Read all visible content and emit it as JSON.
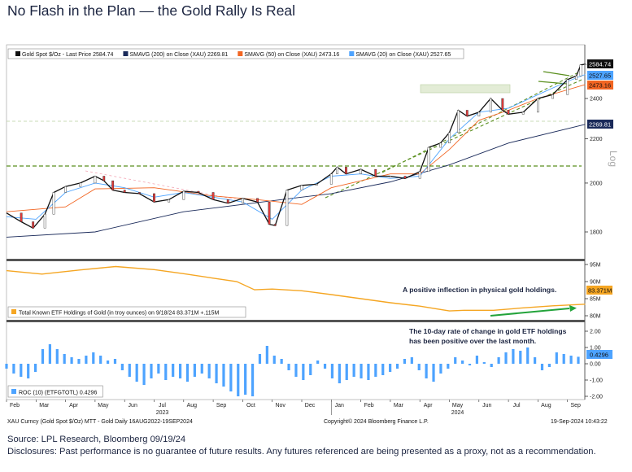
{
  "title": "No Flash in the Plan — the Gold Rally Is Real",
  "source": "Source: LPL Research, Bloomberg 09/19/24",
  "disclosure": "Disclosures: Past performance is no guarantee of future results. Any futures referenced are being presented as a proxy, not as a recommendation.",
  "footer": {
    "left": "XAU Curncy (Gold Spot  $/Oz) MTT - Gold  Daily 16AUG2022-19SEP2024",
    "center": "Copyright© 2024 Bloomberg Finance L.P.",
    "right": "19-Sep-2024 10:43:22"
  },
  "colors": {
    "price": "#111111",
    "sma200": "#1a2a5a",
    "sma50": "#f26522",
    "sma20": "#4da3ff",
    "etf": "#f5a623",
    "roc": "#4da3ff",
    "annotation": "#5a8f1e"
  },
  "chart_data": [
    {
      "type": "line",
      "title": "Gold Spot $/Oz",
      "scale": "Log",
      "ylim": [
        1740,
        2640
      ],
      "yticks": [
        "1800",
        "2000",
        "2200",
        "2400"
      ],
      "legend": {
        "placement": "top-left",
        "entries": [
          {
            "label": "Gold Spot $/Oz - Last Price 2584.74",
            "key": "price"
          },
          {
            "label": "SMAVG (200)  on Close (XAU) 2269.81",
            "key": "sma200"
          },
          {
            "label": "SMAVG (50)  on Close (XAU) 2473.16",
            "key": "sma50"
          },
          {
            "label": "SMAVG (20)  on Close (XAU) 2527.65",
            "key": "sma20"
          }
        ]
      },
      "last_labels": {
        "price": "2584.74",
        "sma20": "2527.65",
        "sma50": "2473.16",
        "sma200": "2269.81"
      },
      "x_unit": "months since Feb 2023",
      "series": [
        {
          "name": "price",
          "points": [
            [
              0,
              1875
            ],
            [
              0.5,
              1840
            ],
            [
              0.9,
              1815
            ],
            [
              1.3,
              1870
            ],
            [
              1.6,
              1960
            ],
            [
              2.0,
              1985
            ],
            [
              2.5,
              2000
            ],
            [
              3.0,
              2030
            ],
            [
              3.3,
              2010
            ],
            [
              3.6,
              1970
            ],
            [
              4.0,
              1960
            ],
            [
              4.5,
              1955
            ],
            [
              5.0,
              1920
            ],
            [
              5.5,
              1930
            ],
            [
              6.0,
              1965
            ],
            [
              6.5,
              1960
            ],
            [
              7.0,
              1930
            ],
            [
              7.5,
              1915
            ],
            [
              8.0,
              1935
            ],
            [
              8.5,
              1920
            ],
            [
              8.9,
              1830
            ],
            [
              9.1,
              1825
            ],
            [
              9.5,
              1970
            ],
            [
              10.0,
              1990
            ],
            [
              10.5,
              1995
            ],
            [
              11.0,
              2040
            ],
            [
              11.2,
              2070
            ],
            [
              11.5,
              2040
            ],
            [
              12.0,
              2060
            ],
            [
              12.5,
              2030
            ],
            [
              13.0,
              2030
            ],
            [
              13.5,
              2020
            ],
            [
              14.0,
              2050
            ],
            [
              14.3,
              2160
            ],
            [
              14.7,
              2180
            ],
            [
              15.0,
              2230
            ],
            [
              15.3,
              2340
            ],
            [
              15.6,
              2310
            ],
            [
              16.0,
              2330
            ],
            [
              16.4,
              2400
            ],
            [
              16.8,
              2340
            ],
            [
              17.0,
              2320
            ],
            [
              17.5,
              2330
            ],
            [
              18.0,
              2400
            ],
            [
              18.5,
              2420
            ],
            [
              19.0,
              2500
            ],
            [
              19.3,
              2520
            ],
            [
              19.45,
              2580
            ],
            [
              19.6,
              2584.74
            ]
          ]
        },
        {
          "name": "sma200",
          "points": [
            [
              0,
              1780
            ],
            [
              3,
              1800
            ],
            [
              6,
              1880
            ],
            [
              9,
              1925
            ],
            [
              11,
              1955
            ],
            [
              13,
              2005
            ],
            [
              15,
              2080
            ],
            [
              17,
              2180
            ],
            [
              19.6,
              2269.81
            ]
          ]
        },
        {
          "name": "sma50",
          "points": [
            [
              0,
              1880
            ],
            [
              2,
              1900
            ],
            [
              3,
              1975
            ],
            [
              5,
              1980
            ],
            [
              7,
              1945
            ],
            [
              8.5,
              1930
            ],
            [
              10,
              1910
            ],
            [
              11,
              1980
            ],
            [
              13,
              2040
            ],
            [
              14,
              2040
            ],
            [
              15,
              2150
            ],
            [
              16,
              2290
            ],
            [
              17,
              2340
            ],
            [
              18,
              2400
            ],
            [
              19.6,
              2473.16
            ]
          ]
        },
        {
          "name": "sma20",
          "points": [
            [
              0,
              1860
            ],
            [
              1,
              1850
            ],
            [
              2,
              1960
            ],
            [
              3,
              2000
            ],
            [
              4,
              1980
            ],
            [
              5,
              1940
            ],
            [
              6,
              1960
            ],
            [
              7,
              1940
            ],
            [
              8,
              1920
            ],
            [
              9,
              1850
            ],
            [
              10,
              1970
            ],
            [
              11,
              2030
            ],
            [
              12,
              2040
            ],
            [
              13,
              2020
            ],
            [
              14,
              2030
            ],
            [
              15,
              2200
            ],
            [
              16,
              2330
            ],
            [
              17,
              2350
            ],
            [
              18,
              2420
            ],
            [
              19,
              2490
            ],
            [
              19.6,
              2527.65
            ]
          ]
        }
      ]
    },
    {
      "type": "line",
      "title": "Total Known ETF Holdings of Gold (in troy ounces)",
      "legend": {
        "placement": "bottom-left",
        "label": "Total Known ETF Holdings of Gold (in troy ounces) on 9/18/24 83.371M  +.115M"
      },
      "yticks": [
        "80M",
        "85M",
        "90M",
        "95M"
      ],
      "ylim": [
        79,
        96
      ],
      "last_label": "83.371M",
      "annotation": "A positive inflection in physical gold holdings.",
      "points": [
        [
          0,
          93.2
        ],
        [
          1.2,
          92.2
        ],
        [
          2.5,
          93.4
        ],
        [
          3.7,
          94.4
        ],
        [
          5,
          93.5
        ],
        [
          6,
          92.3
        ],
        [
          7,
          91
        ],
        [
          7.8,
          90
        ],
        [
          8.4,
          87.6
        ],
        [
          9,
          87.8
        ],
        [
          10,
          87.3
        ],
        [
          11,
          86.2
        ],
        [
          12,
          85
        ],
        [
          13,
          83.8
        ],
        [
          14,
          82.8
        ],
        [
          15,
          81.4
        ],
        [
          15.5,
          81.6
        ],
        [
          16.5,
          81.6
        ],
        [
          17.5,
          82.3
        ],
        [
          18.5,
          82.9
        ],
        [
          19.6,
          83.371
        ]
      ]
    },
    {
      "type": "bar",
      "title": "ROC (10) (ETFGTOTL)",
      "legend": {
        "placement": "bottom-left",
        "label": "ROC (10) (ETFGTOTL) 0.4296"
      },
      "yticks": [
        "-2.00",
        "-1.00",
        "0.00",
        "1.00",
        "2.00"
      ],
      "ylim": [
        -2.2,
        2.2
      ],
      "last_label": "0.4296",
      "annotation": [
        "The 10-day rate of change in gold ETF holdings",
        "has been positive over the last month."
      ],
      "values": [
        -0.3,
        -0.6,
        -0.8,
        -0.9,
        -0.5,
        0.9,
        1.2,
        0.9,
        0.6,
        0.4,
        0.3,
        0.5,
        0.7,
        0.5,
        0.2,
        0.3,
        -0.4,
        -0.8,
        -1.1,
        -1.3,
        -0.9,
        -0.6,
        -1.0,
        -0.8,
        -0.9,
        -1.1,
        -0.8,
        -0.6,
        -0.9,
        -1.2,
        -1.4,
        -1.7,
        -2.0,
        -1.9,
        -2.0,
        0.6,
        1.1,
        0.5,
        0.3,
        -0.4,
        -0.8,
        -1.0,
        -0.7,
        0.2,
        -0.3,
        -0.9,
        -1.2,
        -1.0,
        -0.8,
        -0.9,
        -1.0,
        -0.8,
        -0.7,
        -0.5,
        -0.3,
        0.3,
        0.4,
        -0.4,
        -0.9,
        -1.1,
        -0.6,
        -0.3,
        0.4,
        0.2,
        -0.1,
        0.5,
        0.1,
        -0.2,
        0.4,
        0.7,
        0.9,
        0.8,
        1.0,
        0.4,
        -0.4,
        -0.2,
        0.7,
        0.6,
        0.5,
        0.4296
      ]
    }
  ],
  "x_axis": {
    "months": [
      "Feb",
      "Mar",
      "Apr",
      "May",
      "Jun",
      "Jul",
      "Aug",
      "Sep",
      "Oct",
      "Nov",
      "Dec",
      "Jan",
      "Feb",
      "Mar",
      "Apr",
      "May",
      "Jun",
      "Jul",
      "Aug",
      "Sep"
    ],
    "years": [
      {
        "label": "2023",
        "month_index": 5
      },
      {
        "label": "2024",
        "month_index": 15
      }
    ]
  }
}
